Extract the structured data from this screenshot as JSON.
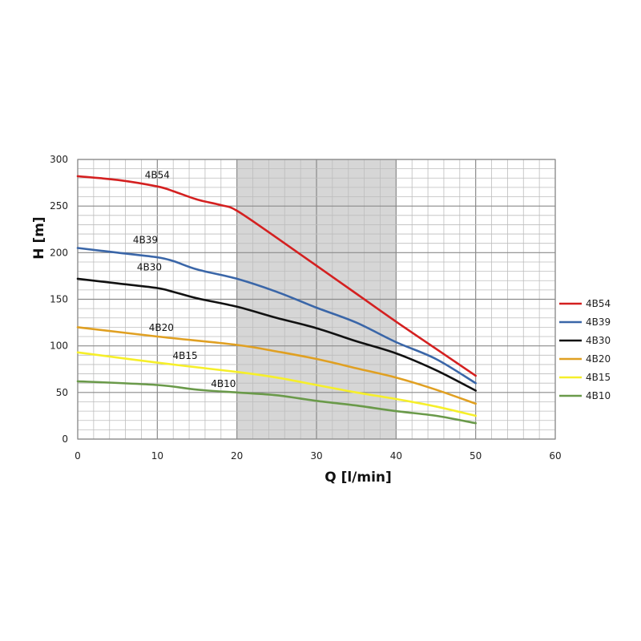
{
  "chart_data": {
    "type": "line",
    "title": "",
    "xlabel": "Q [l/min]",
    "ylabel": "H [m]",
    "xlim": [
      0,
      60
    ],
    "ylim": [
      0,
      300
    ],
    "x_ticks": [
      "0",
      "10",
      "20",
      "30",
      "40",
      "50",
      "60"
    ],
    "y_ticks": [
      "0",
      "50",
      "100",
      "150",
      "200",
      "250",
      "300"
    ],
    "grid": true,
    "legend_position": "right",
    "highlight_band": {
      "x_from": 20,
      "x_to": 40,
      "color": "#d6d6d6"
    },
    "series": [
      {
        "name": "4B54",
        "color": "#d42020",
        "label_at": [
          10,
          280
        ],
        "points": [
          [
            0,
            282
          ],
          [
            5,
            278
          ],
          [
            10,
            271
          ],
          [
            12,
            266
          ],
          [
            15,
            257
          ],
          [
            18,
            251
          ],
          [
            20,
            245
          ],
          [
            25,
            216
          ],
          [
            30,
            186
          ],
          [
            35,
            156
          ],
          [
            40,
            126
          ],
          [
            45,
            97
          ],
          [
            50,
            68
          ]
        ]
      },
      {
        "name": "4B39",
        "color": "#3a66a8",
        "label_at": [
          8.5,
          210
        ],
        "points": [
          [
            0,
            205
          ],
          [
            5,
            200
          ],
          [
            10,
            195
          ],
          [
            12,
            191
          ],
          [
            15,
            182
          ],
          [
            20,
            172
          ],
          [
            25,
            158
          ],
          [
            30,
            141
          ],
          [
            35,
            125
          ],
          [
            40,
            104
          ],
          [
            45,
            86
          ],
          [
            50,
            60
          ]
        ]
      },
      {
        "name": "4B30",
        "color": "#111111",
        "label_at": [
          9,
          181
        ],
        "points": [
          [
            0,
            172
          ],
          [
            5,
            167
          ],
          [
            10,
            162
          ],
          [
            12,
            158
          ],
          [
            15,
            151
          ],
          [
            20,
            142
          ],
          [
            25,
            130
          ],
          [
            30,
            119
          ],
          [
            35,
            105
          ],
          [
            40,
            92
          ],
          [
            45,
            74
          ],
          [
            50,
            52
          ]
        ]
      },
      {
        "name": "4B20",
        "color": "#e0a022",
        "label_at": [
          10.5,
          116
        ],
        "points": [
          [
            0,
            120
          ],
          [
            10,
            110
          ],
          [
            20,
            101
          ],
          [
            25,
            94
          ],
          [
            30,
            86
          ],
          [
            35,
            76
          ],
          [
            40,
            66
          ],
          [
            45,
            53
          ],
          [
            50,
            38
          ]
        ]
      },
      {
        "name": "4B15",
        "color": "#f6ef2a",
        "label_at": [
          13.5,
          86
        ],
        "points": [
          [
            0,
            93
          ],
          [
            10,
            82
          ],
          [
            20,
            72
          ],
          [
            25,
            66
          ],
          [
            30,
            58
          ],
          [
            35,
            50
          ],
          [
            40,
            43
          ],
          [
            45,
            35
          ],
          [
            50,
            25
          ]
        ]
      },
      {
        "name": "4B10",
        "color": "#6a9a4a",
        "label_at": [
          18.3,
          56
        ],
        "points": [
          [
            0,
            62
          ],
          [
            10,
            58
          ],
          [
            15,
            53
          ],
          [
            20,
            50
          ],
          [
            25,
            47
          ],
          [
            30,
            41
          ],
          [
            35,
            36
          ],
          [
            40,
            30
          ],
          [
            45,
            25
          ],
          [
            50,
            17
          ]
        ]
      }
    ]
  }
}
